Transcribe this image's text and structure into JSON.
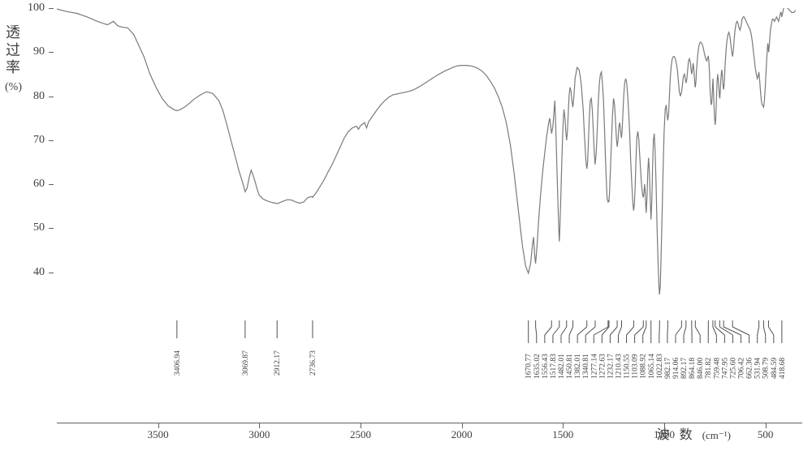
{
  "chart": {
    "type": "line",
    "background_color": "#ffffff",
    "trace_color": "#7a7a7a",
    "axis_color": "#606060",
    "text_color": "#404040",
    "ylabel": "透过率",
    "ylabel_unit": "(%)",
    "xlabel": "波  数",
    "xlabel_unit": "(cm⁻¹)",
    "ylabel_fontsize": 18,
    "xlabel_fontsize": 16,
    "tick_fontsize": 14,
    "peak_fontsize": 10,
    "x_reversed": true,
    "xlim": [
      350,
      4000
    ],
    "ylim": [
      30,
      100
    ],
    "xticks": [
      3500,
      3000,
      2500,
      2000,
      1500,
      1000,
      500
    ],
    "yticks": [
      40,
      50,
      60,
      70,
      80,
      90,
      100
    ],
    "peaks": [
      3406.94,
      3069.87,
      2912.17,
      2736.73,
      1670.77,
      1635.02,
      1556.43,
      1517.83,
      1450.81,
      1482.01,
      1382.01,
      1340.81,
      1272.63,
      1232.17,
      1277.14,
      1210.43,
      1150.55,
      1103.09,
      1088.92,
      1065.14,
      1022.83,
      982.17,
      914.06,
      892.17,
      864.18,
      846.0,
      781.82,
      759.48,
      747.95,
      725.6,
      706.42,
      662.36,
      531.94,
      508.79,
      484.59,
      418.68
    ],
    "peaks_sparse": [
      3406.94,
      3069.87,
      2912.17,
      2736.73
    ],
    "peaks_dense": [
      1670.77,
      1635.02,
      1556.43,
      1517.83,
      1482.01,
      1450.81,
      1382.01,
      1340.81,
      1277.14,
      1272.63,
      1232.17,
      1210.43,
      1150.55,
      1103.09,
      1088.92,
      1065.14,
      1022.83,
      982.17,
      914.06,
      892.17,
      864.18,
      846.0,
      781.82,
      759.48,
      747.95,
      725.6,
      706.42,
      662.36,
      531.94,
      508.79,
      484.59,
      418.68
    ],
    "trace": [
      [
        4000,
        99.8
      ],
      [
        3950,
        99.2
      ],
      [
        3900,
        98.8
      ],
      [
        3850,
        98.0
      ],
      [
        3800,
        97.0
      ],
      [
        3750,
        96.2
      ],
      [
        3720,
        97.0
      ],
      [
        3700,
        96.0
      ],
      [
        3680,
        95.7
      ],
      [
        3650,
        95.5
      ],
      [
        3620,
        94.0
      ],
      [
        3600,
        92.0
      ],
      [
        3570,
        89.0
      ],
      [
        3540,
        85.0
      ],
      [
        3510,
        82.0
      ],
      [
        3480,
        79.5
      ],
      [
        3450,
        77.8
      ],
      [
        3420,
        76.9
      ],
      [
        3406,
        76.7
      ],
      [
        3390,
        77.0
      ],
      [
        3370,
        77.5
      ],
      [
        3350,
        78.2
      ],
      [
        3320,
        79.4
      ],
      [
        3290,
        80.3
      ],
      [
        3260,
        81.0
      ],
      [
        3230,
        80.6
      ],
      [
        3200,
        79.0
      ],
      [
        3180,
        76.8
      ],
      [
        3160,
        73.5
      ],
      [
        3140,
        70.0
      ],
      [
        3120,
        66.5
      ],
      [
        3100,
        63.0
      ],
      [
        3080,
        60.0
      ],
      [
        3070,
        58.3
      ],
      [
        3060,
        59.2
      ],
      [
        3050,
        61.5
      ],
      [
        3040,
        63.2
      ],
      [
        3030,
        62.0
      ],
      [
        3020,
        60.5
      ],
      [
        3010,
        58.8
      ],
      [
        3000,
        57.5
      ],
      [
        2980,
        56.6
      ],
      [
        2960,
        56.2
      ],
      [
        2940,
        55.9
      ],
      [
        2920,
        55.7
      ],
      [
        2912,
        55.6
      ],
      [
        2900,
        55.8
      ],
      [
        2880,
        56.2
      ],
      [
        2860,
        56.5
      ],
      [
        2840,
        56.4
      ],
      [
        2820,
        56.0
      ],
      [
        2800,
        55.7
      ],
      [
        2780,
        56.0
      ],
      [
        2760,
        57.0
      ],
      [
        2740,
        57.2
      ],
      [
        2737,
        57.0
      ],
      [
        2720,
        58.0
      ],
      [
        2700,
        59.5
      ],
      [
        2680,
        61.0
      ],
      [
        2660,
        62.8
      ],
      [
        2640,
        64.5
      ],
      [
        2620,
        66.5
      ],
      [
        2600,
        68.5
      ],
      [
        2580,
        70.5
      ],
      [
        2560,
        72.0
      ],
      [
        2540,
        72.8
      ],
      [
        2520,
        73.2
      ],
      [
        2510,
        72.5
      ],
      [
        2500,
        73.3
      ],
      [
        2480,
        74.0
      ],
      [
        2470,
        72.8
      ],
      [
        2460,
        74.2
      ],
      [
        2440,
        75.5
      ],
      [
        2420,
        76.8
      ],
      [
        2400,
        78.0
      ],
      [
        2380,
        79.0
      ],
      [
        2360,
        79.8
      ],
      [
        2340,
        80.3
      ],
      [
        2320,
        80.5
      ],
      [
        2300,
        80.7
      ],
      [
        2280,
        80.9
      ],
      [
        2260,
        81.1
      ],
      [
        2240,
        81.4
      ],
      [
        2220,
        81.9
      ],
      [
        2200,
        82.4
      ],
      [
        2180,
        83.0
      ],
      [
        2160,
        83.6
      ],
      [
        2140,
        84.2
      ],
      [
        2120,
        84.8
      ],
      [
        2100,
        85.3
      ],
      [
        2080,
        85.8
      ],
      [
        2060,
        86.2
      ],
      [
        2040,
        86.6
      ],
      [
        2020,
        86.9
      ],
      [
        2000,
        87.0
      ],
      [
        1980,
        87.0
      ],
      [
        1960,
        86.9
      ],
      [
        1940,
        86.7
      ],
      [
        1920,
        86.3
      ],
      [
        1900,
        85.7
      ],
      [
        1880,
        84.8
      ],
      [
        1860,
        83.5
      ],
      [
        1840,
        82.0
      ],
      [
        1820,
        80.0
      ],
      [
        1800,
        77.5
      ],
      [
        1780,
        74.0
      ],
      [
        1760,
        69.0
      ],
      [
        1740,
        62.0
      ],
      [
        1720,
        54.0
      ],
      [
        1700,
        46.0
      ],
      [
        1685,
        41.5
      ],
      [
        1671,
        39.8
      ],
      [
        1660,
        42.0
      ],
      [
        1650,
        46.5
      ],
      [
        1645,
        48.0
      ],
      [
        1640,
        44.0
      ],
      [
        1635,
        42.0
      ],
      [
        1628,
        46.0
      ],
      [
        1620,
        52.0
      ],
      [
        1610,
        58.0
      ],
      [
        1600,
        63.0
      ],
      [
        1590,
        67.0
      ],
      [
        1580,
        71.0
      ],
      [
        1570,
        74.0
      ],
      [
        1565,
        75.0
      ],
      [
        1560,
        73.0
      ],
      [
        1556,
        71.5
      ],
      [
        1550,
        73.0
      ],
      [
        1545,
        76.0
      ],
      [
        1540,
        79.0
      ],
      [
        1535,
        72.0
      ],
      [
        1530,
        64.0
      ],
      [
        1525,
        56.0
      ],
      [
        1520,
        49.0
      ],
      [
        1518,
        47.0
      ],
      [
        1515,
        50.0
      ],
      [
        1510,
        58.0
      ],
      [
        1505,
        66.0
      ],
      [
        1500,
        73.0
      ],
      [
        1495,
        77.0
      ],
      [
        1490,
        75.0
      ],
      [
        1486,
        72.0
      ],
      [
        1482,
        70.0
      ],
      [
        1478,
        72.0
      ],
      [
        1474,
        76.0
      ],
      [
        1470,
        80.0
      ],
      [
        1465,
        82.0
      ],
      [
        1460,
        81.0
      ],
      [
        1456,
        79.0
      ],
      [
        1451,
        77.5
      ],
      [
        1446,
        80.0
      ],
      [
        1440,
        84.0
      ],
      [
        1430,
        86.5
      ],
      [
        1420,
        86.0
      ],
      [
        1410,
        83.0
      ],
      [
        1400,
        77.0
      ],
      [
        1395,
        72.0
      ],
      [
        1390,
        68.0
      ],
      [
        1386,
        65.0
      ],
      [
        1382,
        63.5
      ],
      [
        1378,
        65.0
      ],
      [
        1374,
        70.0
      ],
      [
        1370,
        75.0
      ],
      [
        1365,
        79.0
      ],
      [
        1360,
        79.5
      ],
      [
        1355,
        77.0
      ],
      [
        1350,
        72.0
      ],
      [
        1345,
        67.0
      ],
      [
        1341,
        64.5
      ],
      [
        1336,
        67.0
      ],
      [
        1330,
        73.0
      ],
      [
        1325,
        79.0
      ],
      [
        1320,
        83.0
      ],
      [
        1315,
        85.0
      ],
      [
        1310,
        85.5
      ],
      [
        1305,
        83.0
      ],
      [
        1300,
        79.0
      ],
      [
        1295,
        73.0
      ],
      [
        1290,
        66.0
      ],
      [
        1285,
        60.0
      ],
      [
        1282,
        57.0
      ],
      [
        1280,
        56.5
      ],
      [
        1277,
        56.0
      ],
      [
        1275,
        56.2
      ],
      [
        1273,
        56.0
      ],
      [
        1270,
        58.0
      ],
      [
        1265,
        64.0
      ],
      [
        1260,
        70.0
      ],
      [
        1255,
        76.0
      ],
      [
        1250,
        79.5
      ],
      [
        1245,
        78.0
      ],
      [
        1240,
        74.0
      ],
      [
        1236,
        70.5
      ],
      [
        1232,
        68.5
      ],
      [
        1228,
        70.0
      ],
      [
        1224,
        73.0
      ],
      [
        1220,
        74.0
      ],
      [
        1217,
        73.0
      ],
      [
        1214,
        71.5
      ],
      [
        1211,
        70.5
      ],
      [
        1208,
        72.0
      ],
      [
        1204,
        76.0
      ],
      [
        1200,
        80.0
      ],
      [
        1195,
        83.0
      ],
      [
        1190,
        84.0
      ],
      [
        1185,
        83.0
      ],
      [
        1180,
        80.0
      ],
      [
        1175,
        76.0
      ],
      [
        1170,
        71.0
      ],
      [
        1165,
        65.0
      ],
      [
        1160,
        60.0
      ],
      [
        1155,
        56.0
      ],
      [
        1151,
        54.0
      ],
      [
        1147,
        55.5
      ],
      [
        1143,
        60.0
      ],
      [
        1139,
        66.0
      ],
      [
        1135,
        70.5
      ],
      [
        1130,
        72.0
      ],
      [
        1125,
        70.0
      ],
      [
        1120,
        66.0
      ],
      [
        1115,
        62.0
      ],
      [
        1110,
        59.0
      ],
      [
        1106,
        57.5
      ],
      [
        1103,
        57.0
      ],
      [
        1100,
        58.0
      ],
      [
        1097,
        60.0
      ],
      [
        1094,
        58.5
      ],
      [
        1091,
        55.0
      ],
      [
        1089,
        53.5
      ],
      [
        1085,
        57.0
      ],
      [
        1081,
        63.0
      ],
      [
        1077,
        66.0
      ],
      [
        1073,
        63.0
      ],
      [
        1069,
        57.0
      ],
      [
        1065,
        52.0
      ],
      [
        1061,
        56.0
      ],
      [
        1057,
        64.0
      ],
      [
        1053,
        70.0
      ],
      [
        1049,
        71.5
      ],
      [
        1045,
        68.0
      ],
      [
        1040,
        60.0
      ],
      [
        1035,
        50.0
      ],
      [
        1030,
        42.0
      ],
      [
        1026,
        37.0
      ],
      [
        1023,
        35.0
      ],
      [
        1019,
        37.0
      ],
      [
        1015,
        44.0
      ],
      [
        1010,
        54.0
      ],
      [
        1005,
        64.0
      ],
      [
        1000,
        72.0
      ],
      [
        995,
        77.0
      ],
      [
        990,
        78.0
      ],
      [
        986,
        76.0
      ],
      [
        982,
        74.5
      ],
      [
        978,
        76.0
      ],
      [
        974,
        80.0
      ],
      [
        970,
        84.0
      ],
      [
        965,
        87.0
      ],
      [
        960,
        88.5
      ],
      [
        955,
        89.0
      ],
      [
        950,
        89.0
      ],
      [
        945,
        88.5
      ],
      [
        940,
        87.5
      ],
      [
        935,
        86.0
      ],
      [
        930,
        83.5
      ],
      [
        925,
        81.0
      ],
      [
        920,
        80.0
      ],
      [
        917,
        80.5
      ],
      [
        914,
        81.0
      ],
      [
        910,
        82.5
      ],
      [
        905,
        84.5
      ],
      [
        900,
        85.0
      ],
      [
        896,
        84.0
      ],
      [
        892,
        83.0
      ],
      [
        888,
        84.0
      ],
      [
        884,
        86.0
      ],
      [
        880,
        88.0
      ],
      [
        875,
        88.5
      ],
      [
        870,
        87.5
      ],
      [
        867,
        86.0
      ],
      [
        864,
        85.0
      ],
      [
        860,
        86.0
      ],
      [
        857,
        87.5
      ],
      [
        854,
        86.5
      ],
      [
        850,
        84.0
      ],
      [
        848,
        82.5
      ],
      [
        846,
        82.0
      ],
      [
        843,
        83.5
      ],
      [
        840,
        86.0
      ],
      [
        835,
        89.0
      ],
      [
        830,
        91.0
      ],
      [
        825,
        92.0
      ],
      [
        820,
        92.3
      ],
      [
        815,
        92.0
      ],
      [
        810,
        91.5
      ],
      [
        805,
        90.5
      ],
      [
        800,
        89.5
      ],
      [
        795,
        88.5
      ],
      [
        790,
        88.0
      ],
      [
        787,
        88.3
      ],
      [
        785,
        88.8
      ],
      [
        782,
        89.0
      ],
      [
        779,
        88.0
      ],
      [
        776,
        85.0
      ],
      [
        773,
        81.5
      ],
      [
        770,
        79.0
      ],
      [
        767,
        78.0
      ],
      [
        764,
        79.0
      ],
      [
        761,
        82.0
      ],
      [
        759,
        84.0
      ],
      [
        757,
        82.0
      ],
      [
        754,
        78.0
      ],
      [
        751,
        75.0
      ],
      [
        748,
        73.5
      ],
      [
        745,
        75.0
      ],
      [
        742,
        79.0
      ],
      [
        739,
        83.0
      ],
      [
        736,
        85.0
      ],
      [
        733,
        84.0
      ],
      [
        730,
        82.0
      ],
      [
        727,
        80.0
      ],
      [
        725,
        79.5
      ],
      [
        723,
        81.0
      ],
      [
        720,
        84.0
      ],
      [
        716,
        86.0
      ],
      [
        713,
        85.0
      ],
      [
        710,
        83.0
      ],
      [
        708,
        82.0
      ],
      [
        706,
        81.5
      ],
      [
        703,
        83.0
      ],
      [
        700,
        86.0
      ],
      [
        695,
        90.0
      ],
      [
        690,
        92.5
      ],
      [
        685,
        94.0
      ],
      [
        680,
        94.5
      ],
      [
        675,
        93.5
      ],
      [
        670,
        91.5
      ],
      [
        666,
        90.0
      ],
      [
        662,
        89.0
      ],
      [
        658,
        90.5
      ],
      [
        654,
        93.0
      ],
      [
        650,
        95.0
      ],
      [
        645,
        96.5
      ],
      [
        640,
        97.0
      ],
      [
        635,
        96.5
      ],
      [
        630,
        95.5
      ],
      [
        625,
        95.0
      ],
      [
        620,
        96.0
      ],
      [
        615,
        97.5
      ],
      [
        610,
        98.0
      ],
      [
        605,
        98.0
      ],
      [
        600,
        97.5
      ],
      [
        595,
        97.0
      ],
      [
        590,
        96.5
      ],
      [
        585,
        96.0
      ],
      [
        580,
        95.5
      ],
      [
        575,
        95.0
      ],
      [
        570,
        94.0
      ],
      [
        565,
        92.5
      ],
      [
        560,
        90.5
      ],
      [
        555,
        88.5
      ],
      [
        550,
        86.5
      ],
      [
        545,
        85.0
      ],
      [
        540,
        84.0
      ],
      [
        536,
        84.5
      ],
      [
        532,
        85.5
      ],
      [
        528,
        83.5
      ],
      [
        524,
        81.0
      ],
      [
        520,
        79.0
      ],
      [
        516,
        78.0
      ],
      [
        512,
        77.8
      ],
      [
        509,
        77.5
      ],
      [
        505,
        79.0
      ],
      [
        500,
        82.5
      ],
      [
        495,
        87.0
      ],
      [
        490,
        91.0
      ],
      [
        488,
        92.0
      ],
      [
        486,
        91.0
      ],
      [
        484,
        90.0
      ],
      [
        480,
        92.0
      ],
      [
        475,
        95.0
      ],
      [
        470,
        96.5
      ],
      [
        465,
        97.5
      ],
      [
        460,
        97.5
      ],
      [
        455,
        97.0
      ],
      [
        450,
        97.5
      ],
      [
        445,
        98.0
      ],
      [
        440,
        97.5
      ],
      [
        435,
        97.0
      ],
      [
        430,
        98.0
      ],
      [
        425,
        99.0
      ],
      [
        422,
        99.0
      ],
      [
        419,
        98.0
      ],
      [
        414,
        99.0
      ],
      [
        410,
        100.0
      ],
      [
        400,
        100.2
      ],
      [
        390,
        100.0
      ],
      [
        380,
        99.5
      ],
      [
        370,
        99.0
      ],
      [
        360,
        99.0
      ],
      [
        350,
        99.5
      ]
    ]
  }
}
